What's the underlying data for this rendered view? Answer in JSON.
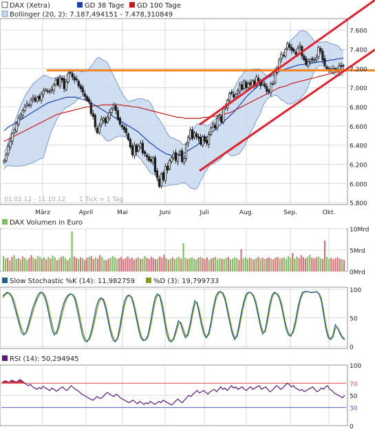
{
  "colors": {
    "price": "#1a1a1a",
    "up": "#3d7a2a",
    "down": "#8b1a1a",
    "gd38": "#1b3fb0",
    "gd100": "#c41c1c",
    "bollinger_fill": "#c8d8ef",
    "bollinger_line": "#7a9cc8",
    "horizontal_line": "#f0821e",
    "channel": "#e0202a",
    "volume_up": "#7fbf5f",
    "volume_down": "#d8707a",
    "stoch_k": "#1f5f8f",
    "stoch_d": "#8a9a20",
    "rsi_line": "#5a1a7a",
    "rsi_overbought_fill": "#e03030",
    "rsi70": "#e05050",
    "rsi30": "#5060c0",
    "grid": "#d8d8d8",
    "frame": "#909090"
  },
  "chart_data": [
    {
      "type": "line",
      "panel": "price",
      "legend": [
        {
          "label": "DAX (Xetra)",
          "swatch": "price-swatch"
        },
        {
          "label": "GD 38 Tage",
          "swatch": "gd38-swatch"
        },
        {
          "label": "GD 100 Tage",
          "swatch": "gd100-swatch"
        },
        {
          "label": "Bollinger (20, 2): 7.187,494151 - 7.478,310849",
          "swatch": "bollinger-swatch"
        }
      ],
      "date_range_label": "01.02.12 - 11.10.12",
      "tick_label": "1 Tick = 1 Tag",
      "x_tick_labels": [
        "März",
        "April",
        "Mai",
        "Juni",
        "Juli",
        "Aug.",
        "Sep.",
        "Okt."
      ],
      "y_tick_labels": [
        "5.800",
        "6.000",
        "6.200",
        "6.400",
        "6.600",
        "6.800",
        "7.000",
        "7.200",
        "7.400",
        "7.600"
      ],
      "ylim": [
        5780,
        7720
      ],
      "grid": true,
      "dax_close": [
        6240,
        6300,
        6390,
        6440,
        6520,
        6560,
        6620,
        6680,
        6720,
        6760,
        6800,
        6830,
        6820,
        6870,
        6900,
        6860,
        6900,
        6880,
        6930,
        6960,
        6980,
        6960,
        6960,
        6980,
        7030,
        7080,
        7030,
        7100,
        7080,
        6990,
        7060,
        7150,
        7160,
        7110,
        7080,
        7080,
        7020,
        6990,
        6950,
        6910,
        6870,
        6850,
        6730,
        6700,
        6590,
        6530,
        6600,
        6670,
        6680,
        6630,
        6690,
        6740,
        6780,
        6820,
        6760,
        6670,
        6620,
        6590,
        6560,
        6530,
        6460,
        6380,
        6300,
        6400,
        6330,
        6390,
        6420,
        6320,
        6310,
        6280,
        6240,
        6230,
        6270,
        6120,
        6060,
        5970,
        6100,
        6040,
        6180,
        6140,
        6240,
        6270,
        6310,
        6240,
        6300,
        6330,
        6230,
        6260,
        6410,
        6480,
        6560,
        6470,
        6530,
        6490,
        6470,
        6410,
        6490,
        6440,
        6420,
        6510,
        6580,
        6620,
        6580,
        6680,
        6710,
        6640,
        6780,
        6800,
        6870,
        6940,
        6940,
        6900,
        6930,
        6970,
        7030,
        6980,
        7070,
        7000,
        7040,
        7030,
        7070,
        7010,
        7110,
        7070,
        7020,
        7050,
        7010,
        6960,
        6960,
        7040,
        7040,
        7170,
        7210,
        7290,
        7350,
        7330,
        7400,
        7460,
        7420,
        7390,
        7380,
        7350,
        7410,
        7440,
        7330,
        7290,
        7240,
        7270,
        7290,
        7290,
        7290,
        7310,
        7420,
        7380,
        7290,
        7230,
        7200,
        7180,
        7190,
        7200,
        7180,
        7190,
        7230,
        7220,
        7230
      ],
      "gd38": [
        6550,
        6580,
        6600,
        6620,
        6640,
        6660,
        6680,
        6700,
        6720,
        6740,
        6760,
        6780,
        6800,
        6820,
        6840,
        6850,
        6860,
        6870,
        6880,
        6890,
        6900,
        6900,
        6900,
        6900,
        6890,
        6880,
        6870,
        6860,
        6840,
        6820,
        6800,
        6780,
        6760,
        6740,
        6720,
        6700,
        6680,
        6660,
        6640,
        6620,
        6600,
        6580,
        6560,
        6540,
        6510,
        6480,
        6450,
        6420,
        6400,
        6370,
        6350,
        6330,
        6310,
        6300,
        6290,
        6290,
        6290,
        6300,
        6320,
        6340,
        6360,
        6380,
        6400,
        6430,
        6450,
        6480,
        6510,
        6540,
        6570,
        6600,
        6630,
        6660,
        6690,
        6720,
        6750,
        6790,
        6830,
        6870,
        6910,
        6940,
        6970,
        7000,
        7030,
        7060,
        7090,
        7110,
        7130,
        7140,
        7160,
        7180,
        7190,
        7200,
        7210,
        7220,
        7230,
        7240,
        7240,
        7250,
        7250,
        7260,
        7260,
        7270,
        7270,
        7280,
        7280,
        7290,
        7290,
        7300,
        7300,
        7310
      ],
      "gd100": [
        6440,
        6460,
        6480,
        6500,
        6520,
        6540,
        6560,
        6580,
        6600,
        6620,
        6640,
        6660,
        6680,
        6700,
        6720,
        6730,
        6740,
        6750,
        6760,
        6770,
        6780,
        6790,
        6800,
        6800,
        6810,
        6810,
        6820,
        6820,
        6820,
        6820,
        6820,
        6820,
        6810,
        6810,
        6800,
        6800,
        6790,
        6780,
        6770,
        6760,
        6750,
        6740,
        6730,
        6720,
        6710,
        6700,
        6690,
        6690,
        6680,
        6680,
        6680,
        6680,
        6680,
        6690,
        6690,
        6700,
        6700,
        6710,
        6720,
        6730,
        6740,
        6760,
        6780,
        6800,
        6820,
        6840,
        6860,
        6880,
        6900,
        6920,
        6940,
        6960,
        6980,
        7000,
        7010,
        7020,
        7040,
        7050,
        7060,
        7070,
        7080,
        7090,
        7100,
        7110,
        7120,
        7130,
        7140,
        7150,
        7160,
        7170,
        7180
      ],
      "horizontal_resistance": 7180,
      "channel_upper": [
        [
          6600,
          7600
        ],
        [
          6650,
          7700
        ]
      ],
      "channel_lower": [
        [
          6050,
          7150
        ],
        [
          6100,
          7430
        ]
      ],
      "ohlc_note": "daily candles, Feb 2012 - Oct 2012"
    },
    {
      "type": "bar",
      "panel": "volume",
      "legend": [
        {
          "label": "DAX Volumen in Euro",
          "swatch": "volume-swatch"
        }
      ],
      "y_tick_labels": [
        "0Mrd",
        "5Mrd",
        "10Mrd"
      ],
      "ylim": [
        0,
        10
      ],
      "values": [
        3.6,
        3.0,
        3.2,
        2.6,
        3.4,
        3.8,
        2.9,
        3.1,
        2.8,
        3.5,
        3.2,
        2.7,
        3.1,
        3.8,
        3.2,
        2.9,
        3.6,
        3.4,
        3.0,
        3.3,
        2.8,
        3.4,
        3.0,
        3.7,
        3.3,
        2.6,
        3.0,
        3.4,
        3.6,
        3.1,
        2.6,
        3.2,
        9.4,
        3.5,
        3.2,
        2.9,
        3.3,
        3.1,
        2.7,
        3.2,
        3.4,
        3.6,
        2.9,
        3.3,
        3.0,
        3.8,
        3.4,
        2.8,
        2.6,
        3.0,
        3.2,
        3.6,
        3.3,
        2.9,
        3.1,
        3.4,
        2.8,
        3.1,
        3.5,
        3.0,
        3.2,
        2.7,
        3.1,
        3.3,
        2.9,
        3.0,
        3.6,
        3.2,
        2.9,
        3.4,
        3.1,
        2.8,
        3.0,
        3.5,
        3.2,
        3.9,
        3.1,
        2.7,
        3.0,
        3.3,
        2.9,
        3.2,
        3.4,
        3.0,
        6.6,
        3.2,
        2.9,
        3.1,
        3.3,
        3.0,
        2.8,
        3.2,
        3.4,
        3.1,
        2.9,
        3.3,
        2.7,
        3.0,
        3.2,
        3.4,
        2.8,
        3.1,
        3.0,
        2.9,
        3.2,
        3.4,
        2.8,
        3.0,
        3.3,
        3.1,
        2.7,
        5.2,
        3.0,
        3.3,
        2.9,
        3.2,
        3.0,
        2.8,
        3.1,
        3.4,
        3.0,
        3.2,
        2.9,
        3.1,
        3.3,
        3.0,
        2.8,
        3.2,
        3.4,
        3.0,
        3.1,
        3.3,
        2.9,
        3.6,
        3.2,
        4.3,
        3.0,
        3.5,
        3.1,
        3.8,
        3.3,
        3.0,
        3.4,
        3.9,
        3.2,
        3.0,
        3.3,
        3.5,
        3.1,
        2.9,
        7.2,
        3.4,
        3.0,
        3.2,
        2.8,
        3.1,
        3.3,
        3.0,
        2.9,
        2.7
      ],
      "up_flags": [
        1,
        1,
        0,
        1,
        0,
        1,
        1,
        0,
        1,
        0,
        1,
        1,
        0,
        0,
        1,
        0,
        1,
        1,
        0,
        1,
        0,
        1,
        0,
        1,
        1,
        0,
        1,
        0,
        1,
        1,
        0,
        1,
        1,
        0,
        0,
        1,
        0,
        1,
        0,
        0,
        1,
        0,
        0,
        1,
        0,
        0,
        1,
        1,
        0,
        0,
        1,
        1,
        1,
        1,
        0,
        0,
        0,
        0,
        0,
        0,
        0,
        0,
        0,
        1,
        0,
        1,
        1,
        0,
        0,
        0,
        0,
        0,
        1,
        0,
        0,
        0,
        1,
        0,
        1,
        0,
        1,
        1,
        1,
        0,
        1,
        1,
        0,
        1,
        1,
        1,
        1,
        0,
        1,
        0,
        0,
        0,
        1,
        0,
        0,
        1,
        1,
        1,
        0,
        1,
        1,
        0,
        1,
        1,
        1,
        1,
        0,
        0,
        1,
        1,
        1,
        0,
        1,
        0,
        1,
        0,
        1,
        0,
        1,
        0,
        0,
        1,
        0,
        0,
        0,
        1,
        0,
        1,
        1,
        1,
        1,
        0,
        1,
        1,
        0,
        0,
        0,
        0,
        1,
        1,
        0,
        0,
        0,
        1,
        1,
        0,
        0,
        1,
        1,
        0,
        0,
        0,
        0,
        0,
        1,
        0,
        1,
        0,
        1
      ]
    },
    {
      "type": "line",
      "panel": "slow_stochastic",
      "legend": [
        {
          "label": "Slow Stochastic %K (14): 11,982759",
          "swatch": "stoch-k-swatch"
        },
        {
          "label": "%D (3): 19,799733",
          "swatch": "stoch-d-swatch"
        }
      ],
      "y_tick_labels": [
        "0",
        "50",
        "100"
      ],
      "ylim": [
        0,
        100
      ],
      "k": [
        88,
        92,
        95,
        92,
        85,
        70,
        55,
        40,
        25,
        20,
        25,
        40,
        55,
        70,
        80,
        90,
        95,
        94,
        85,
        70,
        50,
        30,
        20,
        25,
        40,
        60,
        75,
        85,
        90,
        92,
        90,
        80,
        60,
        40,
        20,
        10,
        8,
        15,
        30,
        50,
        70,
        82,
        85,
        80,
        65,
        45,
        25,
        12,
        8,
        15,
        35,
        60,
        80,
        88,
        90,
        85,
        70,
        50,
        30,
        15,
        10,
        12,
        20,
        40,
        65,
        85,
        92,
        88,
        70,
        45,
        22,
        10,
        8,
        15,
        30,
        45,
        40,
        25,
        15,
        22,
        40,
        62,
        80,
        75,
        55,
        35,
        20,
        15,
        25,
        45,
        70,
        88,
        95,
        96,
        92,
        80,
        60,
        40,
        22,
        12,
        20,
        40,
        62,
        80,
        92,
        95,
        94,
        88,
        75,
        55,
        35,
        22,
        28,
        50,
        75,
        90,
        95,
        92,
        85,
        70,
        50,
        30,
        20,
        18,
        28,
        45,
        68,
        85,
        95,
        96,
        96,
        95,
        94,
        95,
        96,
        92,
        80,
        55,
        30,
        15,
        12,
        20,
        38,
        32,
        22,
        15,
        12
      ],
      "d": [
        85,
        90,
        93,
        93,
        88,
        78,
        62,
        46,
        32,
        23,
        23,
        33,
        48,
        62,
        75,
        85,
        92,
        94,
        90,
        78,
        60,
        40,
        25,
        22,
        32,
        50,
        67,
        80,
        88,
        91,
        91,
        85,
        70,
        50,
        30,
        15,
        10,
        12,
        22,
        40,
        60,
        76,
        84,
        83,
        72,
        52,
        32,
        18,
        10,
        12,
        26,
        50,
        72,
        85,
        89,
        87,
        76,
        57,
        37,
        20,
        12,
        11,
        16,
        32,
        55,
        77,
        89,
        90,
        78,
        55,
        32,
        15,
        9,
        12,
        24,
        38,
        42,
        32,
        20,
        18,
        32,
        54,
        74,
        77,
        62,
        42,
        25,
        17,
        20,
        38,
        62,
        82,
        92,
        95,
        94,
        85,
        67,
        47,
        28,
        16,
        16,
        32,
        54,
        74,
        88,
        94,
        94,
        90,
        80,
        62,
        42,
        27,
        25,
        42,
        66,
        85,
        93,
        93,
        88,
        76,
        56,
        36,
        24,
        19,
        24,
        38,
        60,
        80,
        92,
        95,
        96,
        95,
        95,
        95,
        95,
        93,
        85,
        63,
        37,
        20,
        13,
        16,
        32,
        33,
        25,
        17,
        13
      ]
    },
    {
      "type": "line",
      "panel": "rsi",
      "legend": [
        {
          "label": "RSI (14): 50,294945",
          "swatch": "rsi-swatch"
        }
      ],
      "y_tick_labels": [
        "0",
        "30",
        "50",
        "70",
        "100"
      ],
      "ylim": [
        0,
        100
      ],
      "reference_lines": [
        70,
        30
      ],
      "values": [
        72,
        74,
        73,
        71,
        75,
        74,
        72,
        73,
        76,
        74,
        71,
        68,
        66,
        68,
        64,
        62,
        60,
        63,
        61,
        65,
        62,
        60,
        58,
        62,
        60,
        57,
        59,
        62,
        64,
        60,
        58,
        62,
        66,
        63,
        60,
        58,
        55,
        52,
        50,
        48,
        46,
        44,
        42,
        44,
        48,
        46,
        45,
        48,
        52,
        55,
        52,
        50,
        48,
        52,
        50,
        46,
        44,
        42,
        40,
        38,
        40,
        42,
        39,
        36,
        40,
        38,
        35,
        38,
        36,
        40,
        38,
        35,
        37,
        40,
        38,
        42,
        40,
        38,
        36,
        34,
        37,
        41,
        44,
        40,
        38,
        42,
        46,
        50,
        48,
        52,
        55,
        58,
        54,
        56,
        58,
        55,
        52,
        56,
        58,
        60,
        56,
        60,
        64,
        60,
        62,
        58,
        62,
        66,
        62,
        64,
        60,
        62,
        64,
        60,
        58,
        62,
        64,
        60,
        62,
        64,
        66,
        60,
        62,
        64,
        60,
        56,
        58,
        62,
        66,
        64,
        60,
        62,
        66,
        70,
        68,
        64,
        66,
        62,
        60,
        58,
        60,
        56,
        58,
        60,
        62,
        64,
        60,
        56,
        58,
        62,
        60,
        64,
        66,
        60,
        58,
        54,
        52,
        50,
        48,
        46,
        50
      ]
    }
  ]
}
